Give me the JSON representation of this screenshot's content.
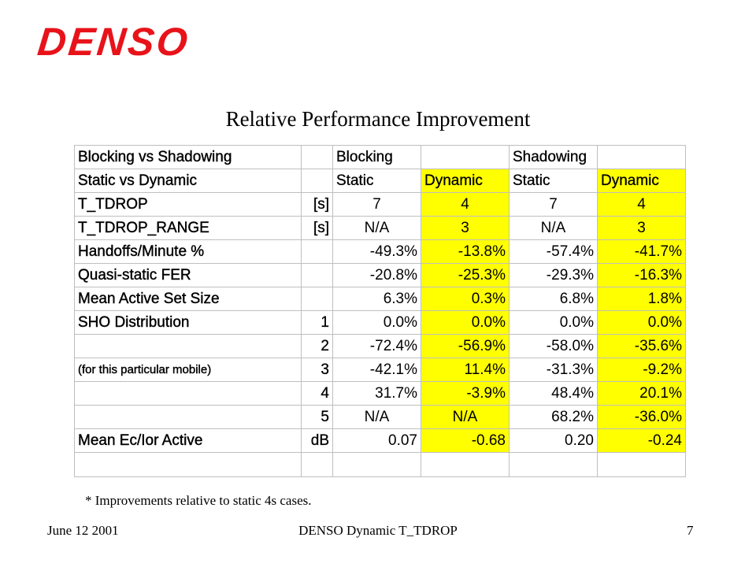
{
  "logo": "DENSO",
  "title": "Relative Performance Improvement",
  "table": {
    "header1": {
      "label": "Blocking vs Shadowing",
      "unit": "",
      "blocking": "Blocking",
      "shadowing": "Shadowing"
    },
    "header2": {
      "label": "Static vs Dynamic",
      "unit": "",
      "c1": "Static",
      "c2": "Dynamic",
      "c3": "Static",
      "c4": "Dynamic"
    },
    "rows": [
      {
        "label": "T_TDROP",
        "unit": "[s]",
        "v": [
          "7",
          "4",
          "7",
          "4"
        ]
      },
      {
        "label": "T_TDROP_RANGE",
        "unit": "[s]",
        "v": [
          "N/A",
          "3",
          "N/A",
          "3"
        ]
      },
      {
        "label": "Handoffs/Minute %",
        "unit": "",
        "v": [
          "-49.3%",
          "-13.8%",
          "-57.4%",
          "-41.7%"
        ]
      },
      {
        "label": "Quasi-static FER",
        "unit": "",
        "v": [
          "-20.8%",
          "-25.3%",
          "-29.3%",
          "-16.3%"
        ]
      },
      {
        "label": "Mean Active Set Size",
        "unit": "",
        "v": [
          "6.3%",
          "0.3%",
          "6.8%",
          "1.8%"
        ]
      },
      {
        "label": "SHO Distribution",
        "unit": "1",
        "v": [
          "0.0%",
          "0.0%",
          "0.0%",
          "0.0%"
        ]
      },
      {
        "label": "",
        "unit": "2",
        "v": [
          "-72.4%",
          "-56.9%",
          "-58.0%",
          "-35.6%"
        ]
      },
      {
        "label": "(for this particular mobile)",
        "unit": "3",
        "v": [
          "-42.1%",
          "11.4%",
          "-31.3%",
          "-9.2%"
        ]
      },
      {
        "label": "",
        "unit": "4",
        "v": [
          "31.7%",
          "-3.9%",
          "48.4%",
          "20.1%"
        ]
      },
      {
        "label": "",
        "unit": "5",
        "v": [
          "N/A",
          "N/A",
          "68.2%",
          "-36.0%"
        ]
      },
      {
        "label": "Mean Ec/Ior Active",
        "unit": "dB",
        "v": [
          "0.07",
          "-0.68",
          "0.20",
          "-0.24"
        ]
      }
    ]
  },
  "footnote": "* Improvements relative to static 4s cases.",
  "footer": {
    "date": "June 12 2001",
    "center": "DENSO Dynamic T_TDROP",
    "page": "7"
  },
  "colors": {
    "logo": "#e8131a",
    "highlight": "#ffff00"
  }
}
